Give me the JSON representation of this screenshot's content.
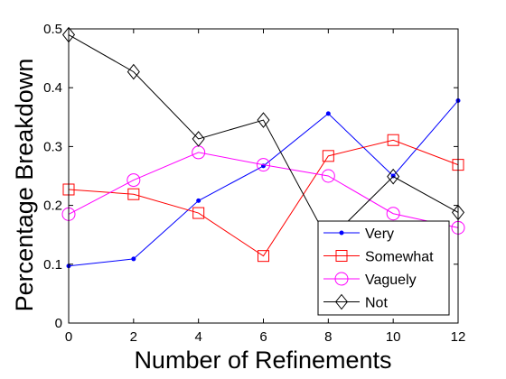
{
  "chart_data": {
    "type": "line",
    "xlabel": "Number of Refinements",
    "ylabel": "Percentage Breakdown",
    "x": [
      0,
      2,
      4,
      6,
      8,
      10,
      12
    ],
    "xticks": [
      "0",
      "2",
      "4",
      "6",
      "8",
      "10",
      "12"
    ],
    "yticks": [
      "0",
      "0.1",
      "0.2",
      "0.3",
      "0.4",
      "0.5"
    ],
    "xlim": [
      0,
      12
    ],
    "ylim": [
      0,
      0.5
    ],
    "grid": false,
    "legend_position": "bottom-right",
    "series": [
      {
        "name": "Very",
        "color": "#0000ff",
        "marker": "dot",
        "values": [
          0.097,
          0.109,
          0.208,
          0.267,
          0.356,
          0.25,
          0.378
        ]
      },
      {
        "name": "Somewhat",
        "color": "#ff0000",
        "marker": "square",
        "values": [
          0.227,
          0.219,
          0.187,
          0.114,
          0.284,
          0.311,
          0.269
        ]
      },
      {
        "name": "Vaguely",
        "color": "#ff00ff",
        "marker": "circle",
        "values": [
          0.185,
          0.243,
          0.29,
          0.269,
          0.25,
          0.186,
          0.162
        ]
      },
      {
        "name": "Not",
        "color": "#000000",
        "marker": "diamond",
        "values": [
          0.49,
          0.427,
          0.313,
          0.345,
          0.14,
          0.249,
          0.188
        ]
      }
    ]
  }
}
